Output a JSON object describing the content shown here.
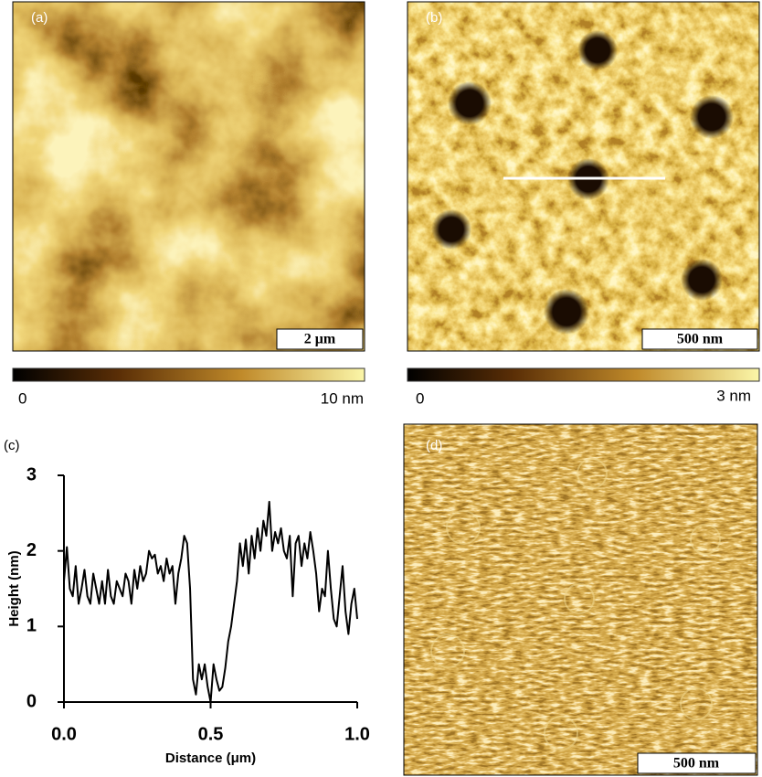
{
  "panels": {
    "a": {
      "label": "(a)",
      "scale_bar": "2 μm",
      "colorbar": {
        "min": "0",
        "max": "10 nm"
      }
    },
    "b": {
      "label": "(b)",
      "scale_bar": "500 nm",
      "colorbar": {
        "min": "0",
        "max": "3 nm"
      }
    },
    "c": {
      "label": "(c)"
    },
    "d": {
      "label": "(d)",
      "scale_bar": "500 nm"
    }
  },
  "chart_data": {
    "type": "line",
    "xlabel": "Distance (μm)",
    "ylabel": "Height (nm)",
    "color": "#000000",
    "grid": false,
    "xlim": [
      0,
      1
    ],
    "ylim": [
      0,
      3
    ],
    "xticks": [
      {
        "value": 0,
        "label": "0.0"
      },
      0.5,
      {
        "value": 1,
        "label": "1.0"
      }
    ],
    "yticks": [
      0,
      1,
      2,
      3
    ],
    "x": [
      0,
      0.01,
      0.02,
      0.03,
      0.04,
      0.05,
      0.06,
      0.07,
      0.08,
      0.09,
      0.1,
      0.11,
      0.12,
      0.13,
      0.14,
      0.15,
      0.16,
      0.17,
      0.18,
      0.19,
      0.2,
      0.21,
      0.22,
      0.23,
      0.24,
      0.25,
      0.26,
      0.27,
      0.28,
      0.29,
      0.3,
      0.31,
      0.32,
      0.33,
      0.34,
      0.35,
      0.36,
      0.37,
      0.38,
      0.39,
      0.4,
      0.41,
      0.42,
      0.43,
      0.44,
      0.45,
      0.46,
      0.47,
      0.48,
      0.49,
      0.5,
      0.51,
      0.52,
      0.53,
      0.54,
      0.55,
      0.56,
      0.57,
      0.58,
      0.59,
      0.6,
      0.61,
      0.62,
      0.63,
      0.64,
      0.65,
      0.66,
      0.67,
      0.68,
      0.69,
      0.7,
      0.71,
      0.72,
      0.73,
      0.74,
      0.75,
      0.76,
      0.77,
      0.78,
      0.79,
      0.8,
      0.81,
      0.82,
      0.83,
      0.84,
      0.85,
      0.86,
      0.87,
      0.88,
      0.89,
      0.9,
      0.91,
      0.92,
      0.93,
      0.94,
      0.95,
      0.96,
      0.97,
      0.98,
      0.99,
      1
    ],
    "values": [
      1.6,
      2.05,
      1.5,
      1.4,
      1.8,
      1.3,
      1.5,
      1.75,
      1.4,
      1.3,
      1.7,
      1.5,
      1.3,
      1.6,
      1.3,
      1.75,
      1.4,
      1.3,
      1.6,
      1.5,
      1.4,
      1.7,
      1.6,
      1.3,
      1.75,
      1.5,
      1.8,
      1.6,
      1.7,
      2.0,
      1.9,
      1.95,
      1.7,
      1.8,
      1.6,
      1.9,
      1.7,
      1.8,
      1.3,
      1.7,
      1.9,
      2.2,
      2.1,
      1.5,
      0.3,
      0.1,
      0.5,
      0.3,
      0.5,
      0.2,
      0.0,
      0.5,
      0.3,
      0.15,
      0.2,
      0.45,
      0.8,
      1.0,
      1.3,
      1.6,
      2.1,
      1.8,
      2.15,
      1.7,
      2.2,
      1.9,
      2.3,
      2.0,
      2.4,
      2.2,
      2.65,
      2.0,
      2.25,
      2.1,
      2.3,
      2.0,
      1.9,
      2.2,
      1.4,
      2.1,
      2.2,
      1.8,
      2.1,
      1.9,
      2.25,
      2.0,
      1.7,
      1.2,
      1.5,
      1.4,
      2.0,
      1.5,
      1.1,
      1.0,
      1.4,
      1.8,
      1.2,
      0.9,
      1.3,
      1.5,
      1.1
    ]
  }
}
